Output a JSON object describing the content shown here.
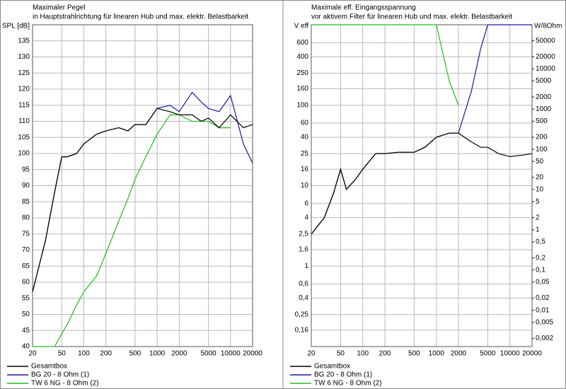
{
  "chart_data": [
    {
      "type": "line",
      "title": "Maximaler Pegel",
      "subtitle": "in Hauptstrahlrichtung für linearen Hub und max. elektr. Belastbarkeit",
      "ylabel": "SPL [dB]",
      "x": [
        20,
        30,
        40,
        50,
        60,
        80,
        100,
        150,
        200,
        300,
        400,
        500,
        700,
        1000,
        1500,
        2000,
        3000,
        4000,
        5000,
        7000,
        10000,
        15000,
        20000
      ],
      "xlim": [
        20,
        20000
      ],
      "xlog": true,
      "xticks": [
        20,
        50,
        100,
        200,
        500,
        1000,
        2000,
        5000,
        10000,
        20000
      ],
      "ylim": [
        40,
        140
      ],
      "yticks": [
        40,
        45,
        50,
        55,
        60,
        65,
        70,
        75,
        80,
        85,
        90,
        95,
        100,
        105,
        110,
        115,
        120,
        125,
        130,
        135
      ],
      "grid": true,
      "series": [
        {
          "name": "Gesamtbox",
          "color": "#000000",
          "values": [
            57,
            73,
            88,
            99,
            99,
            100,
            103,
            106,
            107,
            108,
            107,
            109,
            109,
            114,
            113,
            112,
            112,
            110,
            111,
            108,
            112,
            108,
            109
          ]
        },
        {
          "name": "BG 20 - 8 Ohm (1)",
          "color": "#1a1aa0",
          "values": [
            57,
            73,
            88,
            99,
            99,
            100,
            103,
            106,
            107,
            108,
            107,
            109,
            109,
            114,
            115,
            113,
            119,
            116,
            114,
            113,
            118,
            103,
            97
          ]
        },
        {
          "name": "TW 6 NG - 8 Ohm (2)",
          "color": "#22bb22",
          "values": [
            40,
            40,
            40,
            44,
            47,
            53,
            57,
            62,
            69,
            79,
            86,
            92,
            99,
            106,
            112,
            112,
            110,
            110,
            110,
            108,
            108,
            null,
            null
          ]
        }
      ]
    },
    {
      "type": "line",
      "title": "Maximale eff. Eingangsspannung",
      "subtitle": "vor aktivem Filter für linearen Hub und max. elektr. Belastbarkeit",
      "ylabel": "V eff",
      "y2label": "W/8Ohm",
      "x": [
        20,
        30,
        40,
        50,
        60,
        80,
        100,
        150,
        200,
        300,
        500,
        700,
        1000,
        1500,
        2000,
        3000,
        4000,
        5000,
        7000,
        10000,
        15000,
        20000
      ],
      "xlim": [
        20,
        20000
      ],
      "xlog": true,
      "xticks": [
        20,
        50,
        100,
        200,
        500,
        1000,
        2000,
        5000,
        10000,
        20000
      ],
      "ylim": [
        0.1,
        1000
      ],
      "ylog": true,
      "yticks": [
        {
          "value": 0.16,
          "label": "0,16"
        },
        {
          "value": 0.25,
          "label": "0,25"
        },
        {
          "value": 0.4,
          "label": "0,4"
        },
        {
          "value": 0.6,
          "label": "0,6"
        },
        1,
        {
          "value": 1.6,
          "label": "1,6"
        },
        {
          "value": 2.5,
          "label": "2,5"
        },
        4,
        6,
        10,
        16,
        25,
        40,
        60,
        100,
        160,
        250,
        400,
        600
      ],
      "y2lim": [
        0.00125,
        125000
      ],
      "y2log": true,
      "y2ticks": [
        {
          "value": 0.002,
          "label": "0,002"
        },
        {
          "value": 0.005,
          "label": "0,005"
        },
        {
          "value": 0.01,
          "label": "0,01"
        },
        {
          "value": 0.02,
          "label": "0,02"
        },
        {
          "value": 0.05,
          "label": "0,05"
        },
        {
          "value": 0.1,
          "label": "0,1"
        },
        {
          "value": 0.2,
          "label": "0,2"
        },
        {
          "value": 0.5,
          "label": "0,5"
        },
        1,
        2,
        5,
        10,
        20,
        50,
        100,
        200,
        500,
        1000,
        2000,
        5000,
        10000,
        20000,
        50000
      ],
      "grid": true,
      "series": [
        {
          "name": "Gesamtbox",
          "color": "#000000",
          "values": [
            2.5,
            4,
            8,
            16,
            9,
            12,
            16,
            25,
            25,
            26,
            26,
            30,
            40,
            45,
            45,
            35,
            30,
            30,
            25,
            23,
            24,
            25
          ]
        },
        {
          "name": "BG 20 - 8 Ohm (1)",
          "color": "#1a1aa0",
          "values": [
            2.5,
            4,
            8,
            16,
            9,
            12,
            16,
            25,
            25,
            26,
            26,
            30,
            40,
            45,
            45,
            150,
            500,
            1000,
            1000,
            1000,
            1000,
            1000
          ]
        },
        {
          "name": "TW 6 NG - 8 Ohm (2)",
          "color": "#22bb22",
          "values": [
            1000,
            1000,
            1000,
            1000,
            1000,
            1000,
            1000,
            1000,
            1000,
            1000,
            1000,
            1000,
            1000,
            200,
            100,
            null,
            null,
            null,
            null,
            null,
            null,
            null
          ]
        }
      ]
    }
  ]
}
